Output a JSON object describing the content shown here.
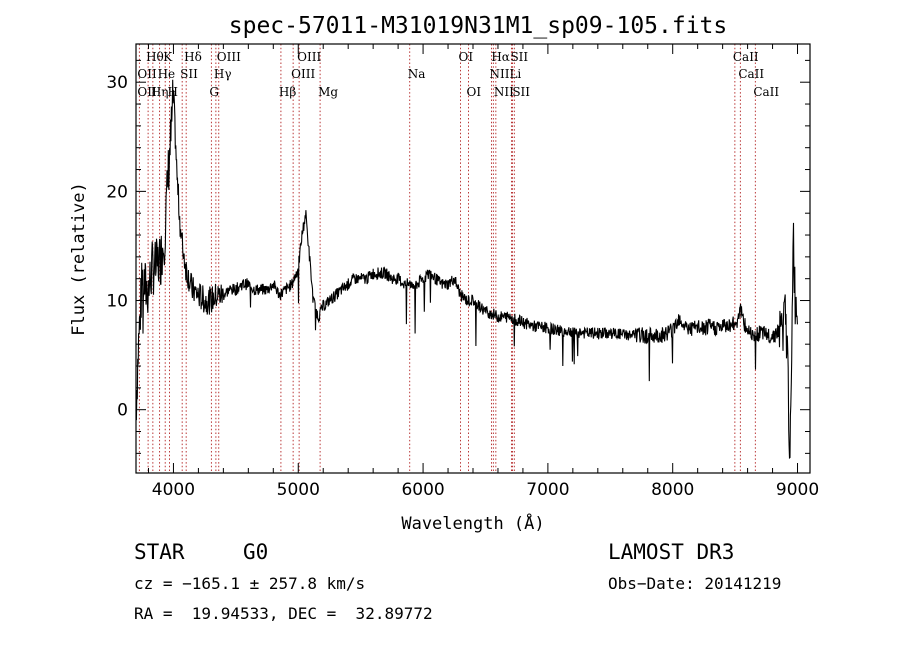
{
  "chart_data": {
    "type": "line",
    "title": "spec-57011-M31019N31M1_sp09-105.fits",
    "xlabel": "Wavelength (Å)",
    "ylabel": "Flux (relative)",
    "xlim": [
      3700,
      9100
    ],
    "ylim": [
      -5.8,
      33.5
    ],
    "xticks": [
      4000,
      5000,
      6000,
      7000,
      8000,
      9000
    ],
    "yticks": [
      0,
      10,
      20,
      30
    ],
    "spectrum_anchors": {
      "x": [
        3700,
        3720,
        3750,
        3780,
        3800,
        3830,
        3860,
        3900,
        3930,
        3960,
        3980,
        4000,
        4030,
        4060,
        4100,
        4150,
        4200,
        4250,
        4300,
        4350,
        4400,
        4450,
        4500,
        4550,
        4600,
        4650,
        4700,
        4750,
        4800,
        4850,
        4900,
        4950,
        5000,
        5030,
        5060,
        5090,
        5120,
        5160,
        5200,
        5250,
        5300,
        5350,
        5400,
        5450,
        5500,
        5550,
        5600,
        5650,
        5700,
        5750,
        5800,
        5850,
        5900,
        5950,
        6000,
        6050,
        6100,
        6150,
        6200,
        6250,
        6300,
        6350,
        6400,
        6450,
        6500,
        6550,
        6600,
        6650,
        6700,
        6750,
        6800,
        6900,
        7000,
        7100,
        7200,
        7300,
        7400,
        7500,
        7600,
        7700,
        7800,
        7900,
        8000,
        8050,
        8100,
        8150,
        8200,
        8250,
        8300,
        8350,
        8400,
        8450,
        8490,
        8520,
        8540,
        8570,
        8600,
        8650,
        8700,
        8750,
        8800,
        8850,
        8880,
        8900,
        8920,
        8935,
        8950,
        8965,
        8980,
        9000
      ],
      "y": [
        0,
        6,
        12,
        11,
        11,
        13,
        13,
        14,
        16,
        22,
        25,
        29,
        21,
        16,
        13,
        11,
        10.5,
        10,
        10,
        10.5,
        10.5,
        11,
        11,
        11.5,
        11.5,
        11,
        11,
        11,
        11.5,
        10.5,
        11,
        11.5,
        13,
        16,
        18,
        14,
        10,
        8.5,
        9.5,
        10,
        10.5,
        11,
        11.5,
        12,
        12,
        12,
        12.5,
        12.5,
        12.5,
        12,
        12,
        11.5,
        11.5,
        11.5,
        12,
        12.5,
        12,
        11.5,
        11.5,
        12,
        10.5,
        10,
        10,
        9.5,
        9,
        8.8,
        8.5,
        8.5,
        8.5,
        8.2,
        8,
        7.6,
        7.5,
        7.2,
        7.2,
        7,
        7,
        7,
        6.9,
        6.8,
        6.8,
        6.8,
        7.3,
        8.5,
        7.6,
        7.4,
        7.5,
        7.4,
        7.6,
        7.5,
        7.6,
        7.8,
        7.8,
        8.2,
        9.5,
        7.8,
        7.3,
        7,
        7,
        6.8,
        6.8,
        7.2,
        7.6,
        8.5,
        5,
        -3,
        0,
        17,
        10,
        9
      ]
    },
    "spectral_lines": [
      {
        "name": "Hθ",
        "wave": 3797,
        "row": 0
      },
      {
        "name": "K",
        "wave": 3934,
        "row": 0
      },
      {
        "name": "Hδ",
        "wave": 4102,
        "row": 0
      },
      {
        "name": "OIII",
        "wave": 4363,
        "row": 0
      },
      {
        "name": "OIII",
        "wave": 5007,
        "row": 0
      },
      {
        "name": "OI",
        "wave": 6300,
        "row": 0
      },
      {
        "name": "Hα",
        "wave": 6563,
        "row": 0
      },
      {
        "name": "SII",
        "wave": 6716,
        "row": 0
      },
      {
        "name": "CaII",
        "wave": 8498,
        "row": 0
      },
      {
        "name": "OII",
        "wave": 3727,
        "row": 1
      },
      {
        "name": "He",
        "wave": 3889,
        "row": 1
      },
      {
        "name": "SII",
        "wave": 4070,
        "row": 1
      },
      {
        "name": "Hγ",
        "wave": 4340,
        "row": 1
      },
      {
        "name": "OIII",
        "wave": 4959,
        "row": 1
      },
      {
        "name": "Na",
        "wave": 5893,
        "row": 1
      },
      {
        "name": "NII",
        "wave": 6548,
        "row": 1
      },
      {
        "name": "Li",
        "wave": 6708,
        "row": 1
      },
      {
        "name": "CaII",
        "wave": 8542,
        "row": 1
      },
      {
        "name": "OII",
        "wave": 3727,
        "row": 2
      },
      {
        "name": "Hη",
        "wave": 3835,
        "row": 2
      },
      {
        "name": "H",
        "wave": 3968,
        "row": 2
      },
      {
        "name": "G",
        "wave": 4304,
        "row": 2
      },
      {
        "name": "Hβ",
        "wave": 4861,
        "row": 2
      },
      {
        "name": "Mg",
        "wave": 5175,
        "row": 2
      },
      {
        "name": "OI",
        "wave": 6364,
        "row": 2
      },
      {
        "name": "NII",
        "wave": 6583,
        "row": 2
      },
      {
        "name": "SII",
        "wave": 6731,
        "row": 2
      },
      {
        "name": "CaII",
        "wave": 8662,
        "row": 2
      }
    ]
  },
  "info": {
    "object_class": "STAR",
    "subclass": "G0",
    "survey": "LAMOST DR3",
    "redshift_line": "cz = −165.1 ± 257.8 km/s",
    "obs_date_line": "Obs−Date: 20141219",
    "coords_line": "RA =  19.94533, DEC =  32.89772"
  },
  "colors": {
    "spectrum": "#000000",
    "line_marker": "#b22222",
    "axes": "#000000"
  }
}
